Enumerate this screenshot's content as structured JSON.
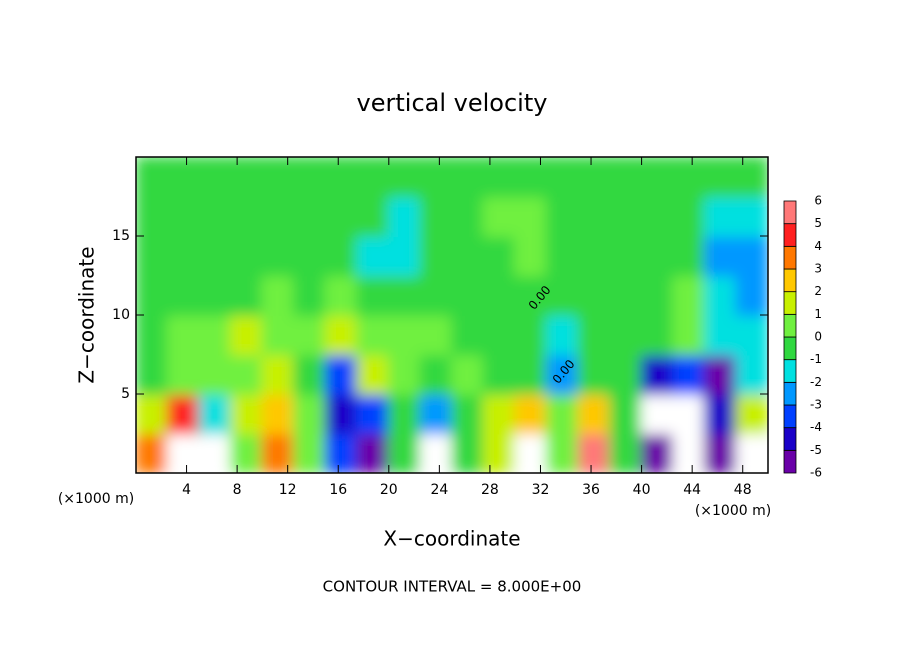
{
  "chart_data": {
    "type": "heatmap",
    "title": "vertical velocity",
    "x_label": "X−coordinate",
    "y_label": "Z−coordinate",
    "x_unit": "(×1000 m)",
    "footer": "CONTOUR INTERVAL = 8.000E+00",
    "contour_label": "0.00",
    "xlim": [
      0,
      50
    ],
    "ylim": [
      0,
      20
    ],
    "xticks": [
      4,
      8,
      12,
      16,
      20,
      24,
      28,
      32,
      36,
      40,
      44,
      48
    ],
    "yticks": [
      5,
      10,
      15
    ],
    "x": [
      1.25,
      3.75,
      6.25,
      8.75,
      11.25,
      13.75,
      16.25,
      18.75,
      21.25,
      23.75,
      26.25,
      28.75,
      31.25,
      33.75,
      36.25,
      38.75,
      41.25,
      43.75,
      46.25,
      48.75
    ],
    "y": [
      1.25,
      3.75,
      6.25,
      8.75,
      11.25,
      13.75,
      16.25,
      18.75
    ],
    "z": [
      [
        4,
        8,
        -8,
        1,
        4,
        1,
        -3,
        -6,
        0,
        -8,
        0,
        2,
        7,
        1,
        6,
        0,
        -5,
        -7,
        -5,
        7
      ],
      [
        2,
        5,
        -1,
        2,
        3,
        1,
        -4,
        -3,
        0,
        -2,
        0,
        2,
        3,
        1,
        3,
        0,
        -7,
        7,
        -4,
        2
      ],
      [
        0,
        1,
        1,
        1,
        2,
        0,
        -3,
        2,
        1,
        0,
        1,
        0,
        0,
        -2,
        0,
        0,
        -4,
        -3,
        -5,
        -1
      ],
      [
        0,
        1,
        1,
        2,
        1,
        1,
        2,
        1,
        1,
        1,
        0,
        0,
        0,
        -1,
        0,
        0,
        0,
        1,
        -1,
        -1
      ],
      [
        0,
        0,
        0,
        0,
        1,
        0,
        1,
        0,
        0,
        0,
        0,
        0,
        0,
        0,
        0,
        0,
        0,
        1,
        -1,
        -2
      ],
      [
        0,
        0,
        0,
        0,
        0,
        0,
        0,
        -1,
        -1,
        0,
        0,
        0,
        1,
        0,
        0,
        0,
        0,
        0,
        -2,
        -2
      ],
      [
        0,
        0,
        0,
        0,
        0,
        0,
        0,
        0,
        -1,
        0,
        0,
        1,
        1,
        0,
        0,
        0,
        0,
        0,
        -1,
        -1
      ],
      [
        0,
        0,
        0,
        0,
        0,
        0,
        0,
        0,
        0,
        0,
        0,
        0,
        0,
        0,
        0,
        0,
        0,
        0,
        0,
        0
      ]
    ],
    "colorbar": {
      "ticks": [
        -6,
        -5,
        -4,
        -3,
        -2,
        -1,
        0,
        1,
        2,
        3,
        4,
        5,
        6
      ],
      "colors": [
        "#6a00a8",
        "#1a00c8",
        "#0040ff",
        "#0098ff",
        "#00e0e0",
        "#30d840",
        "#70f040",
        "#c8f000",
        "#ffc800",
        "#ff7800",
        "#ff2020",
        "#ff7878"
      ]
    }
  }
}
